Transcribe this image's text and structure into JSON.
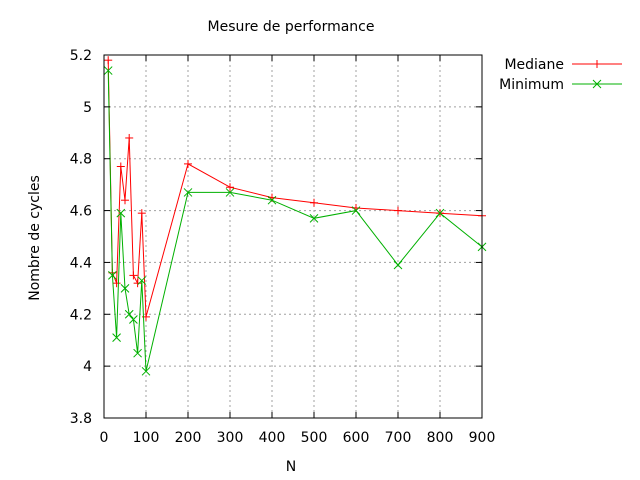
{
  "chart_data": {
    "type": "line",
    "title": "Mesure de performance",
    "xlabel": "N",
    "ylabel": "Nombre de cycles",
    "xlim": [
      0,
      900
    ],
    "ylim": [
      3.8,
      5.2
    ],
    "xticks": [
      0,
      100,
      200,
      300,
      400,
      500,
      600,
      700,
      800,
      900
    ],
    "yticks": [
      3.8,
      4,
      4.2,
      4.4,
      4.6,
      4.8,
      5,
      5.2
    ],
    "xtick_labels": [
      "0",
      "100",
      "200",
      "300",
      "400",
      "500",
      "600",
      "700",
      "800",
      "900"
    ],
    "ytick_labels": [
      "3.8",
      "4",
      "4.2",
      "4.4",
      "4.6",
      "4.8",
      "5",
      "5.2"
    ],
    "grid": true,
    "legend_position": "outside-top-right",
    "series": [
      {
        "name": "Mediane",
        "color": "#ff0000",
        "marker": "plus",
        "x": [
          10,
          20,
          30,
          40,
          50,
          60,
          70,
          80,
          90,
          100,
          200,
          300,
          400,
          500,
          600,
          700,
          800,
          900
        ],
        "y": [
          5.18,
          4.36,
          4.32,
          4.77,
          4.64,
          4.88,
          4.35,
          4.32,
          4.59,
          4.19,
          4.78,
          4.69,
          4.65,
          4.63,
          4.61,
          4.6,
          4.59,
          4.58
        ]
      },
      {
        "name": "Minimum",
        "color": "#00b000",
        "marker": "cross",
        "x": [
          10,
          20,
          30,
          40,
          50,
          60,
          70,
          80,
          90,
          100,
          200,
          300,
          400,
          500,
          600,
          700,
          800,
          900
        ],
        "y": [
          5.14,
          4.35,
          4.11,
          4.59,
          4.3,
          4.2,
          4.18,
          4.05,
          4.33,
          3.98,
          4.67,
          4.67,
          4.64,
          4.57,
          4.6,
          4.39,
          4.59,
          4.46
        ]
      }
    ]
  }
}
